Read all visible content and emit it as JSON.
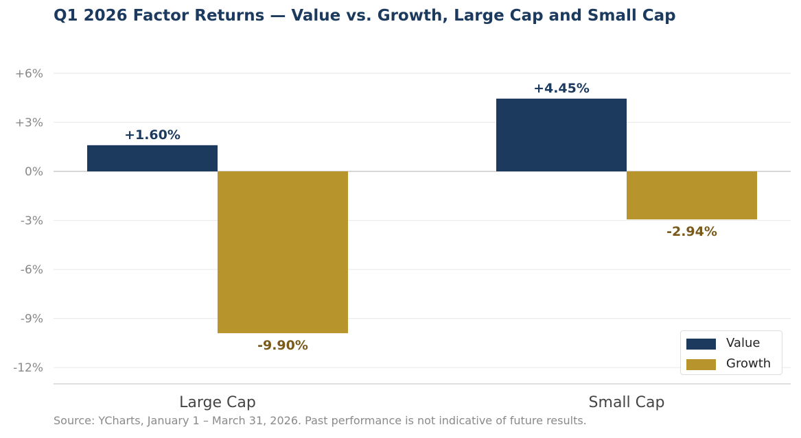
{
  "chart_data": {
    "type": "bar",
    "title": "Q1 2026 Factor Returns — Value vs. Growth, Large Cap and Small Cap",
    "categories": [
      "Large Cap",
      "Small Cap"
    ],
    "series": [
      {
        "name": "Value",
        "values": [
          1.6,
          4.45
        ],
        "labels": [
          "+1.60%",
          "+4.45%"
        ],
        "color": "#1c3a5e",
        "label_color": "#1c3a5e"
      },
      {
        "name": "Growth",
        "values": [
          -9.9,
          -2.94
        ],
        "labels": [
          "-9.90%",
          "-2.94%"
        ],
        "color": "#b8952c",
        "label_color": "#7a5a1a"
      }
    ],
    "y_ticks": [
      6,
      3,
      0,
      -3,
      -6,
      -9,
      -12
    ],
    "y_tick_labels": [
      "+6%",
      "+3%",
      "0%",
      "-3%",
      "-6%",
      "-9%",
      "-12%"
    ],
    "ylim": [
      -13,
      7
    ],
    "grid": true,
    "legend_position": "lower-right",
    "xlabel": "",
    "ylabel": ""
  },
  "source_note": "Source: YCharts, January 1 – March 31, 2026.  Past performance is not indicative of future results.",
  "colors": {
    "title": "#1c3a5e",
    "grid": "#ebebeb",
    "axis": "#cccccc",
    "tick_text": "#888888",
    "category_text": "#444444"
  }
}
